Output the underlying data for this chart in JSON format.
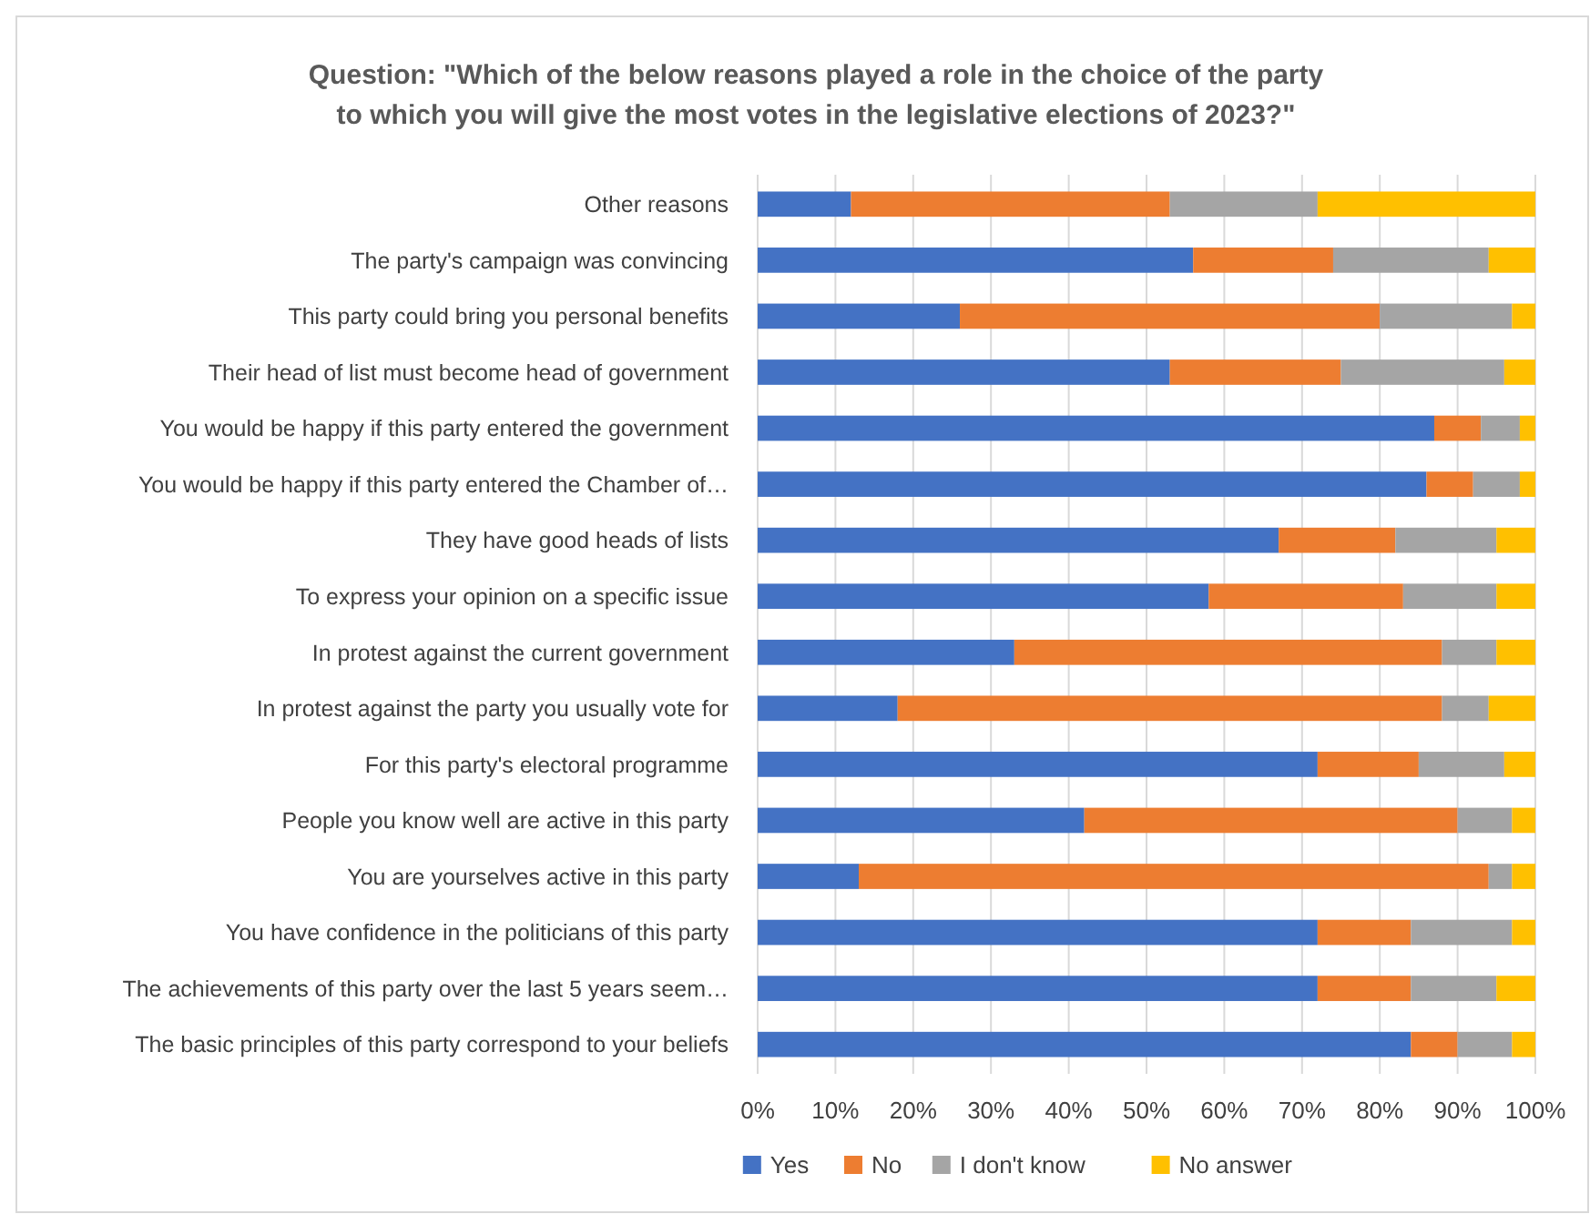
{
  "chart_data": {
    "type": "bar",
    "orientation": "horizontal",
    "stacked": true,
    "title": "Question: \"Which of the below reasons played a role in the choice of the party to which you will give the most votes in the legislative elections of 2023?\"",
    "categories": [
      "Other reasons",
      "The party's campaign was convincing",
      "This party could bring you personal benefits",
      "Their head of list must become head of government",
      "You would be happy if this party entered the government",
      "You would be happy if this party entered the Chamber of…",
      "They have good heads of lists",
      "To express your opinion on a specific issue",
      "In protest against the current government",
      "In protest against the party you usually vote for",
      "For this party's electoral programme",
      "People you know well are active in this party",
      "You are yourselves active in this party",
      "You have confidence in the politicians of this party",
      "The achievements of this party over the last 5 years seem…",
      "The basic principles of this party correspond to your beliefs"
    ],
    "series": [
      {
        "name": "Yes",
        "color": "#4472c4",
        "values": [
          12,
          56,
          26,
          53,
          87,
          86,
          67,
          58,
          33,
          18,
          72,
          42,
          13,
          72,
          72,
          84
        ]
      },
      {
        "name": "No",
        "color": "#ed7d31",
        "values": [
          41,
          18,
          54,
          22,
          6,
          6,
          15,
          25,
          55,
          70,
          13,
          48,
          81,
          12,
          12,
          6
        ]
      },
      {
        "name": "I don't know",
        "color": "#a5a5a5",
        "values": [
          19,
          20,
          17,
          21,
          5,
          6,
          13,
          12,
          7,
          6,
          11,
          7,
          3,
          13,
          11,
          7
        ]
      },
      {
        "name": "No answer",
        "color": "#ffc000",
        "values": [
          28,
          6,
          3,
          4,
          2,
          2,
          5,
          5,
          5,
          6,
          4,
          3,
          3,
          3,
          5,
          3
        ]
      }
    ],
    "xlim": [
      0,
      100
    ],
    "xticks": [
      {
        "value": 0,
        "label": "0%"
      },
      {
        "value": 10,
        "label": "10%"
      },
      {
        "value": 20,
        "label": "20%"
      },
      {
        "value": 30,
        "label": "30%"
      },
      {
        "value": 40,
        "label": "40%"
      },
      {
        "value": 50,
        "label": "50%"
      },
      {
        "value": 60,
        "label": "60%"
      },
      {
        "value": 70,
        "label": "70%"
      },
      {
        "value": 80,
        "label": "80%"
      },
      {
        "value": 90,
        "label": "90%"
      },
      {
        "value": 100,
        "label": "100%"
      }
    ],
    "grid": "x",
    "legend": "bottom"
  }
}
